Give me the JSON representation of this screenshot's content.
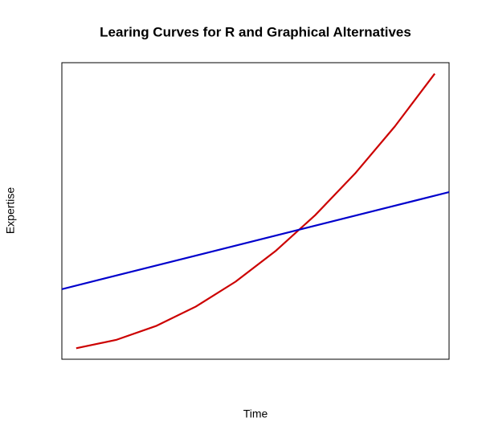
{
  "chart_data": {
    "type": "line",
    "title": "Learing Curves for R and Graphical Alternatives",
    "x_label": "Time",
    "y_label": "Expertise",
    "xlim": [
      0.64,
      10.36
    ],
    "ylim": [
      -2.96,
      103.96
    ],
    "series": [
      {
        "color": "#cc0000",
        "x": [
          1,
          2,
          3,
          4,
          5,
          6,
          7,
          8,
          9,
          10
        ],
        "values": [
          1,
          4,
          9,
          16,
          25,
          36,
          49,
          64,
          81,
          100
        ]
      },
      {
        "color": "#0000cc",
        "x": [
          0.64,
          10.36
        ],
        "values": [
          22.3,
          57.3
        ]
      }
    ]
  }
}
